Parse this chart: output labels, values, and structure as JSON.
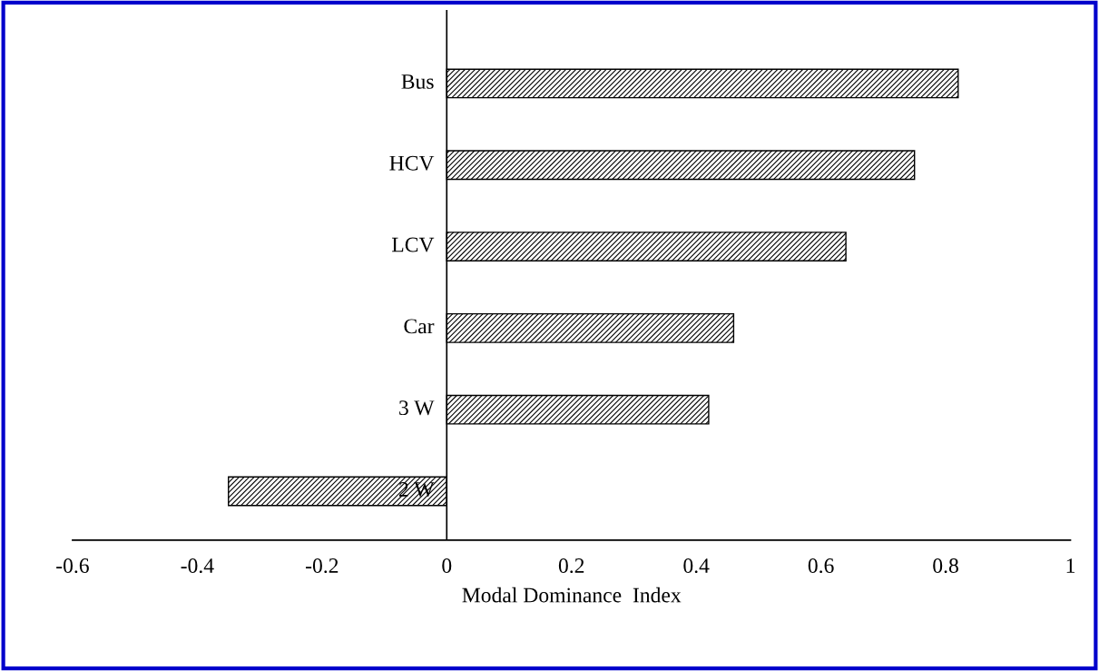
{
  "chart_data": {
    "type": "bar",
    "orientation": "horizontal",
    "xlabel": "Modal Dominance  Index",
    "categories": [
      "Bus",
      "HCV",
      "LCV",
      "Car",
      "3 W",
      "2 W"
    ],
    "values": [
      0.82,
      0.75,
      0.64,
      0.46,
      0.42,
      -0.35
    ],
    "color": "#000000",
    "xlim": [
      -0.6,
      1
    ],
    "xticks": [
      {
        "value": -0.6,
        "label": "-0.6"
      },
      {
        "value": -0.4,
        "label": "-0.4"
      },
      {
        "value": -0.2,
        "label": "-0.2"
      },
      0,
      0.2,
      0.4,
      0.6,
      0.8,
      1
    ],
    "grid": false
  }
}
